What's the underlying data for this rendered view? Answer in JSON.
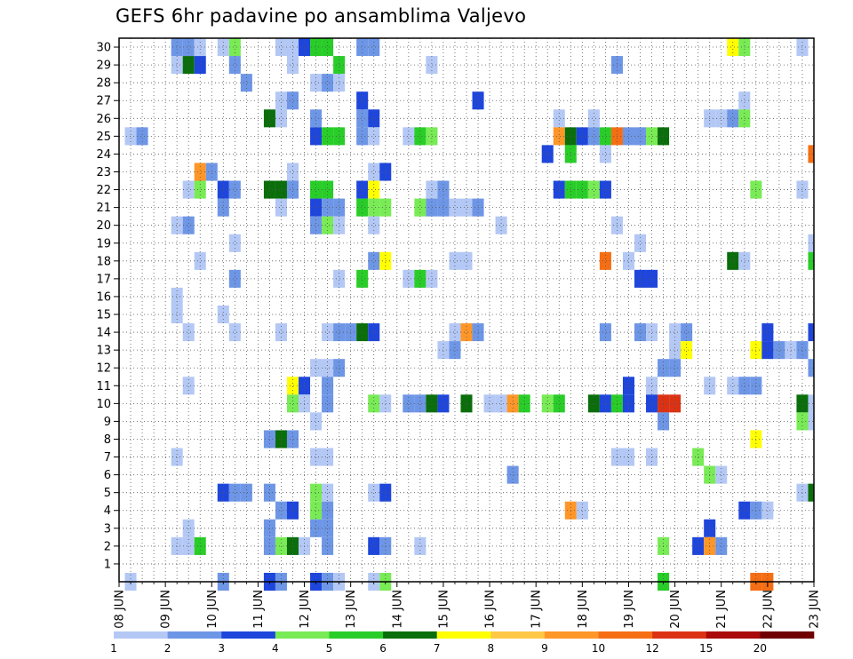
{
  "chart_data": {
    "type": "heatmap",
    "title": "GEFS 6hr padavine po ansamblima Valjevo",
    "xlabel": "",
    "ylabel": "",
    "y_ticks": [
      "1",
      "2",
      "3",
      "4",
      "5",
      "6",
      "7",
      "8",
      "9",
      "10",
      "11",
      "12",
      "13",
      "14",
      "15",
      "16",
      "17",
      "18",
      "19",
      "20",
      "21",
      "22",
      "23",
      "24",
      "25",
      "26",
      "27",
      "28",
      "29",
      "30"
    ],
    "ylim": [
      0,
      30
    ],
    "x_ticks": [
      "08 JUN",
      "09 JUN",
      "10 JUN",
      "11 JUN",
      "12 JUN",
      "13 JUN",
      "14 JUN",
      "15 JUN",
      "16 JUN",
      "17 JUN",
      "18 JUN",
      "19 JUN",
      "20 JUN",
      "21 JUN",
      "22 JUN",
      "23 JUN"
    ],
    "timesteps": 61,
    "colorbar": {
      "labels": [
        "1",
        "2",
        "3",
        "4",
        "5",
        "6",
        "7",
        "8",
        "9",
        "10",
        "12",
        "15",
        "20"
      ],
      "colors": [
        "#b4c8f5",
        "#6e96e6",
        "#1e46dc",
        "#78eb55",
        "#28cd28",
        "#0a6e0a",
        "#ffff00",
        "#ffc846",
        "#ff9628",
        "#f56e14",
        "#dc3214",
        "#aa0a0a",
        "#6e0000"
      ]
    },
    "grid": "dotted",
    "cells": [
      [
        30,
        5,
        1
      ],
      [
        30,
        6,
        1
      ],
      [
        30,
        7,
        0
      ],
      [
        30,
        9,
        0
      ],
      [
        30,
        10,
        3
      ],
      [
        30,
        14,
        0
      ],
      [
        30,
        15,
        0
      ],
      [
        30,
        16,
        2
      ],
      [
        30,
        17,
        4
      ],
      [
        30,
        18,
        4
      ],
      [
        30,
        21,
        1
      ],
      [
        30,
        22,
        1
      ],
      [
        30,
        53,
        6
      ],
      [
        30,
        54,
        3
      ],
      [
        30,
        59,
        0
      ],
      [
        29,
        5,
        0
      ],
      [
        29,
        6,
        5
      ],
      [
        29,
        7,
        2
      ],
      [
        29,
        10,
        1
      ],
      [
        29,
        15,
        0
      ],
      [
        29,
        19,
        4
      ],
      [
        29,
        27,
        0
      ],
      [
        29,
        43,
        1
      ],
      [
        28,
        11,
        1
      ],
      [
        28,
        17,
        0
      ],
      [
        28,
        18,
        1
      ],
      [
        28,
        19,
        0
      ],
      [
        27,
        14,
        0
      ],
      [
        27,
        15,
        1
      ],
      [
        27,
        21,
        2
      ],
      [
        27,
        31,
        2
      ],
      [
        27,
        54,
        0
      ],
      [
        26,
        13,
        5
      ],
      [
        26,
        14,
        0
      ],
      [
        26,
        17,
        1
      ],
      [
        26,
        21,
        1
      ],
      [
        26,
        22,
        2
      ],
      [
        26,
        38,
        0
      ],
      [
        26,
        41,
        0
      ],
      [
        26,
        51,
        0
      ],
      [
        26,
        52,
        0
      ],
      [
        26,
        53,
        1
      ],
      [
        26,
        54,
        3
      ],
      [
        25,
        1,
        0
      ],
      [
        25,
        2,
        1
      ],
      [
        25,
        17,
        2
      ],
      [
        25,
        18,
        4
      ],
      [
        25,
        19,
        4
      ],
      [
        25,
        21,
        1
      ],
      [
        25,
        22,
        0
      ],
      [
        25,
        25,
        0
      ],
      [
        25,
        26,
        4
      ],
      [
        25,
        27,
        3
      ],
      [
        25,
        38,
        8
      ],
      [
        25,
        39,
        5
      ],
      [
        25,
        40,
        2
      ],
      [
        25,
        41,
        1
      ],
      [
        25,
        42,
        4
      ],
      [
        25,
        43,
        9
      ],
      [
        25,
        44,
        1
      ],
      [
        25,
        45,
        1
      ],
      [
        25,
        46,
        3
      ],
      [
        25,
        47,
        5
      ],
      [
        24,
        37,
        2
      ],
      [
        24,
        39,
        4
      ],
      [
        24,
        42,
        0
      ],
      [
        24,
        60,
        9
      ],
      [
        23,
        7,
        8
      ],
      [
        23,
        8,
        1
      ],
      [
        23,
        15,
        0
      ],
      [
        23,
        22,
        0
      ],
      [
        23,
        23,
        2
      ],
      [
        22,
        6,
        0
      ],
      [
        22,
        7,
        3
      ],
      [
        22,
        9,
        2
      ],
      [
        22,
        10,
        1
      ],
      [
        22,
        13,
        5
      ],
      [
        22,
        14,
        5
      ],
      [
        22,
        15,
        1
      ],
      [
        22,
        17,
        4
      ],
      [
        22,
        18,
        4
      ],
      [
        22,
        21,
        2
      ],
      [
        22,
        22,
        6
      ],
      [
        22,
        27,
        0
      ],
      [
        22,
        28,
        1
      ],
      [
        22,
        38,
        2
      ],
      [
        22,
        39,
        4
      ],
      [
        22,
        40,
        4
      ],
      [
        22,
        41,
        3
      ],
      [
        22,
        42,
        2
      ],
      [
        22,
        55,
        3
      ],
      [
        22,
        59,
        0
      ],
      [
        21,
        9,
        1
      ],
      [
        21,
        14,
        0
      ],
      [
        21,
        17,
        2
      ],
      [
        21,
        18,
        1
      ],
      [
        21,
        19,
        1
      ],
      [
        21,
        21,
        4
      ],
      [
        21,
        22,
        3
      ],
      [
        21,
        23,
        3
      ],
      [
        21,
        26,
        3
      ],
      [
        21,
        27,
        1
      ],
      [
        21,
        28,
        1
      ],
      [
        21,
        29,
        0
      ],
      [
        21,
        30,
        0
      ],
      [
        21,
        31,
        1
      ],
      [
        20,
        5,
        0
      ],
      [
        20,
        6,
        1
      ],
      [
        20,
        17,
        1
      ],
      [
        20,
        18,
        3
      ],
      [
        20,
        19,
        0
      ],
      [
        20,
        22,
        0
      ],
      [
        20,
        33,
        0
      ],
      [
        20,
        43,
        0
      ],
      [
        19,
        10,
        0
      ],
      [
        19,
        45,
        0
      ],
      [
        19,
        60,
        0
      ],
      [
        18,
        7,
        0
      ],
      [
        18,
        22,
        1
      ],
      [
        18,
        23,
        6
      ],
      [
        18,
        29,
        0
      ],
      [
        18,
        30,
        0
      ],
      [
        18,
        42,
        9
      ],
      [
        18,
        44,
        0
      ],
      [
        18,
        53,
        5
      ],
      [
        18,
        54,
        0
      ],
      [
        18,
        60,
        4
      ],
      [
        17,
        10,
        1
      ],
      [
        17,
        19,
        0
      ],
      [
        17,
        21,
        4
      ],
      [
        17,
        25,
        0
      ],
      [
        17,
        26,
        4
      ],
      [
        17,
        27,
        0
      ],
      [
        17,
        45,
        2
      ],
      [
        17,
        46,
        2
      ],
      [
        16,
        5,
        0
      ],
      [
        15,
        5,
        0
      ],
      [
        15,
        9,
        0
      ],
      [
        14,
        6,
        0
      ],
      [
        14,
        10,
        0
      ],
      [
        14,
        14,
        0
      ],
      [
        14,
        18,
        0
      ],
      [
        14,
        19,
        1
      ],
      [
        14,
        20,
        1
      ],
      [
        14,
        21,
        5
      ],
      [
        14,
        22,
        2
      ],
      [
        14,
        29,
        0
      ],
      [
        14,
        30,
        8
      ],
      [
        14,
        31,
        1
      ],
      [
        14,
        42,
        1
      ],
      [
        14,
        45,
        1
      ],
      [
        14,
        46,
        0
      ],
      [
        14,
        48,
        0
      ],
      [
        14,
        49,
        1
      ],
      [
        14,
        56,
        2
      ],
      [
        14,
        60,
        2
      ],
      [
        13,
        28,
        0
      ],
      [
        13,
        29,
        1
      ],
      [
        13,
        48,
        0
      ],
      [
        13,
        49,
        6
      ],
      [
        13,
        55,
        6
      ],
      [
        13,
        56,
        2
      ],
      [
        13,
        57,
        1
      ],
      [
        13,
        58,
        0
      ],
      [
        13,
        59,
        1
      ],
      [
        12,
        17,
        0
      ],
      [
        12,
        18,
        0
      ],
      [
        12,
        19,
        1
      ],
      [
        12,
        47,
        1
      ],
      [
        12,
        48,
        1
      ],
      [
        12,
        60,
        1
      ],
      [
        11,
        6,
        0
      ],
      [
        11,
        15,
        6
      ],
      [
        11,
        16,
        2
      ],
      [
        11,
        18,
        1
      ],
      [
        11,
        44,
        2
      ],
      [
        11,
        46,
        0
      ],
      [
        11,
        51,
        0
      ],
      [
        11,
        53,
        0
      ],
      [
        11,
        54,
        1
      ],
      [
        11,
        55,
        1
      ],
      [
        10,
        15,
        3
      ],
      [
        10,
        16,
        0
      ],
      [
        10,
        18,
        1
      ],
      [
        10,
        22,
        3
      ],
      [
        10,
        23,
        0
      ],
      [
        10,
        25,
        1
      ],
      [
        10,
        26,
        1
      ],
      [
        10,
        27,
        5
      ],
      [
        10,
        28,
        2
      ],
      [
        10,
        30,
        5
      ],
      [
        10,
        32,
        0
      ],
      [
        10,
        33,
        0
      ],
      [
        10,
        34,
        8
      ],
      [
        10,
        35,
        4
      ],
      [
        10,
        37,
        3
      ],
      [
        10,
        38,
        4
      ],
      [
        10,
        41,
        5
      ],
      [
        10,
        42,
        2
      ],
      [
        10,
        43,
        4
      ],
      [
        10,
        44,
        2
      ],
      [
        10,
        46,
        2
      ],
      [
        10,
        47,
        10
      ],
      [
        10,
        48,
        10
      ],
      [
        10,
        59,
        5
      ],
      [
        10,
        60,
        0
      ],
      [
        9,
        17,
        0
      ],
      [
        9,
        47,
        1
      ],
      [
        9,
        59,
        3
      ],
      [
        9,
        60,
        0
      ],
      [
        8,
        13,
        1
      ],
      [
        8,
        14,
        5
      ],
      [
        8,
        15,
        1
      ],
      [
        8,
        55,
        6
      ],
      [
        7,
        5,
        0
      ],
      [
        7,
        17,
        0
      ],
      [
        7,
        18,
        0
      ],
      [
        7,
        43,
        0
      ],
      [
        7,
        44,
        0
      ],
      [
        7,
        46,
        0
      ],
      [
        7,
        50,
        3
      ],
      [
        6,
        34,
        1
      ],
      [
        6,
        51,
        3
      ],
      [
        6,
        52,
        0
      ],
      [
        5,
        9,
        2
      ],
      [
        5,
        10,
        1
      ],
      [
        5,
        11,
        1
      ],
      [
        5,
        13,
        1
      ],
      [
        5,
        17,
        3
      ],
      [
        5,
        18,
        0
      ],
      [
        5,
        22,
        0
      ],
      [
        5,
        23,
        2
      ],
      [
        5,
        59,
        0
      ],
      [
        5,
        60,
        5
      ],
      [
        4,
        14,
        1
      ],
      [
        4,
        15,
        2
      ],
      [
        4,
        17,
        3
      ],
      [
        4,
        18,
        1
      ],
      [
        4,
        39,
        8
      ],
      [
        4,
        40,
        0
      ],
      [
        4,
        54,
        2
      ],
      [
        4,
        55,
        1
      ],
      [
        4,
        56,
        0
      ],
      [
        3,
        6,
        0
      ],
      [
        3,
        13,
        1
      ],
      [
        3,
        17,
        1
      ],
      [
        3,
        18,
        1
      ],
      [
        3,
        51,
        2
      ],
      [
        2,
        5,
        0
      ],
      [
        2,
        6,
        0
      ],
      [
        2,
        7,
        4
      ],
      [
        2,
        13,
        1
      ],
      [
        2,
        14,
        3
      ],
      [
        2,
        15,
        5
      ],
      [
        2,
        16,
        0
      ],
      [
        2,
        18,
        1
      ],
      [
        2,
        22,
        2
      ],
      [
        2,
        23,
        1
      ],
      [
        2,
        26,
        0
      ],
      [
        2,
        47,
        3
      ],
      [
        2,
        50,
        2
      ],
      [
        2,
        51,
        8
      ],
      [
        2,
        52,
        1
      ],
      [
        0,
        1,
        0
      ],
      [
        0,
        9,
        1
      ],
      [
        0,
        13,
        2
      ],
      [
        0,
        14,
        1
      ],
      [
        0,
        17,
        2
      ],
      [
        0,
        18,
        1
      ],
      [
        0,
        19,
        0
      ],
      [
        0,
        22,
        0
      ],
      [
        0,
        23,
        3
      ],
      [
        0,
        47,
        4
      ],
      [
        0,
        55,
        9
      ],
      [
        0,
        56,
        9
      ]
    ]
  }
}
